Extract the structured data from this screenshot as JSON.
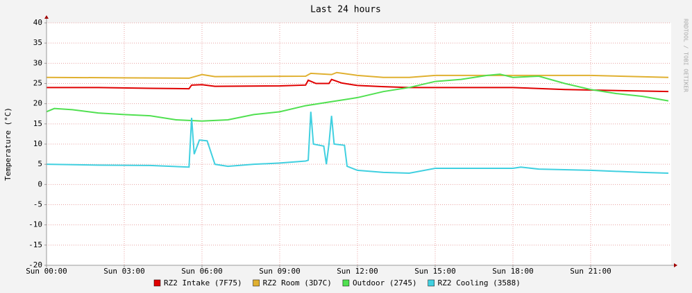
{
  "chart_data": {
    "type": "line",
    "title": "Last 24 hours",
    "y_label": "Temperature (°C)",
    "watermark": "RRDTOOL / TOBI OETIKER",
    "xlim": [
      0,
      24
    ],
    "ylim": [
      -20,
      40
    ],
    "xticks": [
      {
        "value": 0,
        "label": "Sun 00:00"
      },
      {
        "value": 3,
        "label": "Sun 03:00"
      },
      {
        "value": 6,
        "label": "Sun 06:00"
      },
      {
        "value": 9,
        "label": "Sun 09:00"
      },
      {
        "value": 12,
        "label": "Sun 12:00"
      },
      {
        "value": 15,
        "label": "Sun 15:00"
      },
      {
        "value": 18,
        "label": "Sun 18:00"
      },
      {
        "value": 21,
        "label": "Sun 21:00"
      }
    ],
    "yticks": [
      -20,
      -15,
      -10,
      -5,
      0,
      5,
      10,
      15,
      20,
      25,
      30,
      35,
      40
    ],
    "grid": true,
    "series": [
      {
        "name": "RZ2 Intake (7F75)",
        "color": "#e00000",
        "x": [
          0,
          2,
          4,
          5.5,
          5.6,
          6,
          6.5,
          9,
          10,
          10.1,
          10.4,
          10.9,
          11,
          11.4,
          12,
          13,
          14,
          18,
          20,
          24
        ],
        "values": [
          24,
          24,
          23.8,
          23.7,
          24.6,
          24.7,
          24.3,
          24.4,
          24.6,
          25.8,
          25,
          25,
          26,
          25.1,
          24.5,
          24.2,
          24,
          24,
          23.5,
          23
        ]
      },
      {
        "name": "RZ2 Room (3D7C)",
        "color": "#e0b030",
        "x": [
          0,
          3,
          5.5,
          6,
          6.5,
          10,
          10.2,
          11,
          11.2,
          12,
          13,
          14,
          15,
          21,
          24
        ],
        "values": [
          26.5,
          26.4,
          26.3,
          27.2,
          26.7,
          26.8,
          27.5,
          27.2,
          27.7,
          27,
          26.5,
          26.5,
          27,
          27,
          26.5
        ]
      },
      {
        "name": "Outdoor (2745)",
        "color": "#50e050",
        "x": [
          0,
          0.3,
          1,
          2,
          3,
          4,
          5,
          6,
          7,
          8,
          9,
          10,
          11,
          12,
          13,
          14,
          15,
          16,
          17,
          17.5,
          18,
          19,
          20,
          21,
          22,
          23,
          24
        ],
        "values": [
          18,
          18.8,
          18.5,
          17.7,
          17.3,
          17,
          16,
          15.7,
          16,
          17.3,
          18,
          19.5,
          20.5,
          21.5,
          23,
          24,
          25.5,
          26,
          27,
          27.3,
          26.5,
          26.8,
          25,
          23.5,
          22.5,
          21.8,
          20.7
        ]
      },
      {
        "name": "RZ2 Cooling (3588)",
        "color": "#40d0e0",
        "x": [
          0,
          2,
          4,
          5.5,
          5.6,
          5.7,
          5.9,
          6.2,
          6.5,
          7,
          8,
          9,
          10,
          10.1,
          10.2,
          10.3,
          10.7,
          10.8,
          10.9,
          11,
          11.1,
          11.5,
          11.6,
          12,
          13,
          14,
          15,
          18,
          18.3,
          19,
          21,
          23,
          24
        ],
        "values": [
          5,
          4.8,
          4.7,
          4.3,
          16.5,
          7.5,
          11,
          10.8,
          5,
          4.5,
          5,
          5.3,
          5.8,
          6,
          18,
          10,
          9.5,
          5,
          10,
          17,
          10,
          9.7,
          4.5,
          3.5,
          3,
          2.8,
          4,
          4,
          4.3,
          3.8,
          3.5,
          3,
          2.8
        ]
      }
    ]
  }
}
